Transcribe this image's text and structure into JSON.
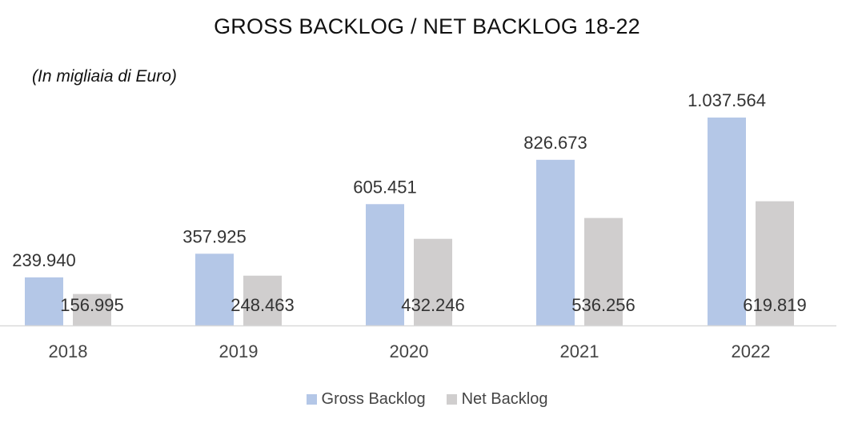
{
  "chart_data": {
    "type": "bar",
    "title": "GROSS BACKLOG / NET BACKLOG 18-22",
    "subtitle": "(In migliaia di Euro)",
    "categories": [
      "2018",
      "2019",
      "2020",
      "2021",
      "2022"
    ],
    "series": [
      {
        "name": "Gross Backlog",
        "color": "#b4c7e7",
        "values": [
          239940,
          357925,
          605451,
          826673,
          1037564
        ],
        "labels": [
          "239.940",
          "357.925",
          "605.451",
          "826.673",
          "1.037.564"
        ]
      },
      {
        "name": "Net Backlog",
        "color": "#d0cece",
        "values": [
          156995,
          248463,
          432246,
          536256,
          619819
        ],
        "labels": [
          "156.995",
          "248.463",
          "432.246",
          "536.256",
          "619.819"
        ]
      }
    ],
    "ylim": [
      0,
      1037564
    ],
    "grid": false,
    "legend_position": "bottom"
  }
}
